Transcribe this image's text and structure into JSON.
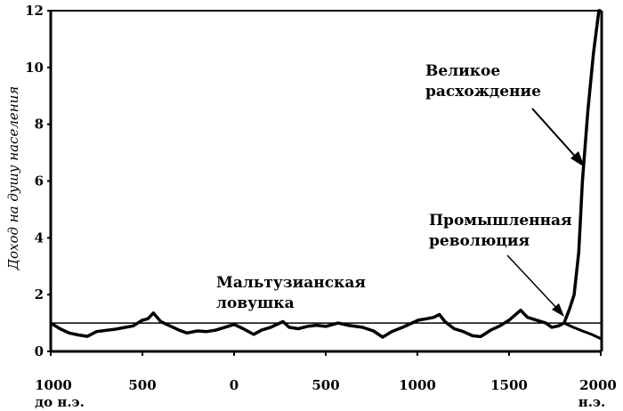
{
  "chart_data": {
    "type": "line",
    "title": "",
    "xlabel": "",
    "ylabel": "Доход на душу населения",
    "xlim": [
      -1000,
      2000
    ],
    "ylim": [
      0,
      12
    ],
    "grid": false,
    "y_ticks": [
      "0",
      "2",
      "4",
      "6",
      "8",
      "10",
      "12"
    ],
    "y_tick_values": [
      0,
      2,
      4,
      6,
      8,
      10,
      12
    ],
    "x_tick_values": [
      -1000,
      -500,
      0,
      500,
      1000,
      1500,
      2000
    ],
    "x_ticks": [
      {
        "label": "1000",
        "sub": "до н.э."
      },
      {
        "label": "500",
        "sub": ""
      },
      {
        "label": "0",
        "sub": ""
      },
      {
        "label": "500",
        "sub": ""
      },
      {
        "label": "1000",
        "sub": ""
      },
      {
        "label": "1500",
        "sub": ""
      },
      {
        "label": "2000",
        "sub": "н.э."
      }
    ],
    "series": [
      {
        "x": [
          -1000,
          -950,
          -900,
          -850,
          -800,
          -750,
          -650,
          -550,
          -500,
          -470,
          -440,
          -400,
          -350,
          -300,
          -257,
          -200,
          -150,
          -100,
          -50,
          0,
          50,
          107,
          150,
          200,
          267,
          300,
          350,
          400,
          450,
          500,
          568,
          620,
          700,
          760,
          810,
          860,
          920,
          1005,
          1050,
          1090,
          1120,
          1150,
          1200,
          1250,
          1300,
          1345,
          1400,
          1450,
          1500,
          1563,
          1600,
          1650,
          1700,
          1733,
          1770,
          1800,
          1830,
          1855,
          1880,
          1900,
          1930,
          1960,
          1990,
          2000
        ],
        "y": [
          1.0,
          0.8,
          0.65,
          0.58,
          0.53,
          0.7,
          0.78,
          0.9,
          1.1,
          1.15,
          1.35,
          1.05,
          0.9,
          0.75,
          0.65,
          0.72,
          0.7,
          0.75,
          0.85,
          0.95,
          0.8,
          0.6,
          0.75,
          0.85,
          1.05,
          0.85,
          0.8,
          0.88,
          0.92,
          0.88,
          1.0,
          0.92,
          0.85,
          0.72,
          0.5,
          0.7,
          0.85,
          1.1,
          1.15,
          1.2,
          1.3,
          1.05,
          0.8,
          0.7,
          0.55,
          0.52,
          0.75,
          0.9,
          1.1,
          1.45,
          1.2,
          1.1,
          1.0,
          0.85,
          0.9,
          1.0,
          1.5,
          2.0,
          3.5,
          6.0,
          8.5,
          10.5,
          12,
          12
        ]
      },
      {
        "x": [
          1800,
          1850,
          1900,
          1950,
          2000
        ],
        "y": [
          1.0,
          0.85,
          0.72,
          0.6,
          0.45
        ]
      },
      {
        "x": [
          -1000,
          2000
        ],
        "y": [
          1.0,
          1.0
        ]
      }
    ],
    "annotations": [
      {
        "lines": [
          "Великое",
          "расхождение"
        ],
        "arrow_to": [
          1900,
          6.5
        ]
      },
      {
        "lines": [
          "Промышленная",
          "революция"
        ],
        "arrow_to": [
          1800,
          1.0
        ]
      },
      {
        "lines": [
          "Мальтузианская",
          "ловушка"
        ]
      }
    ]
  }
}
